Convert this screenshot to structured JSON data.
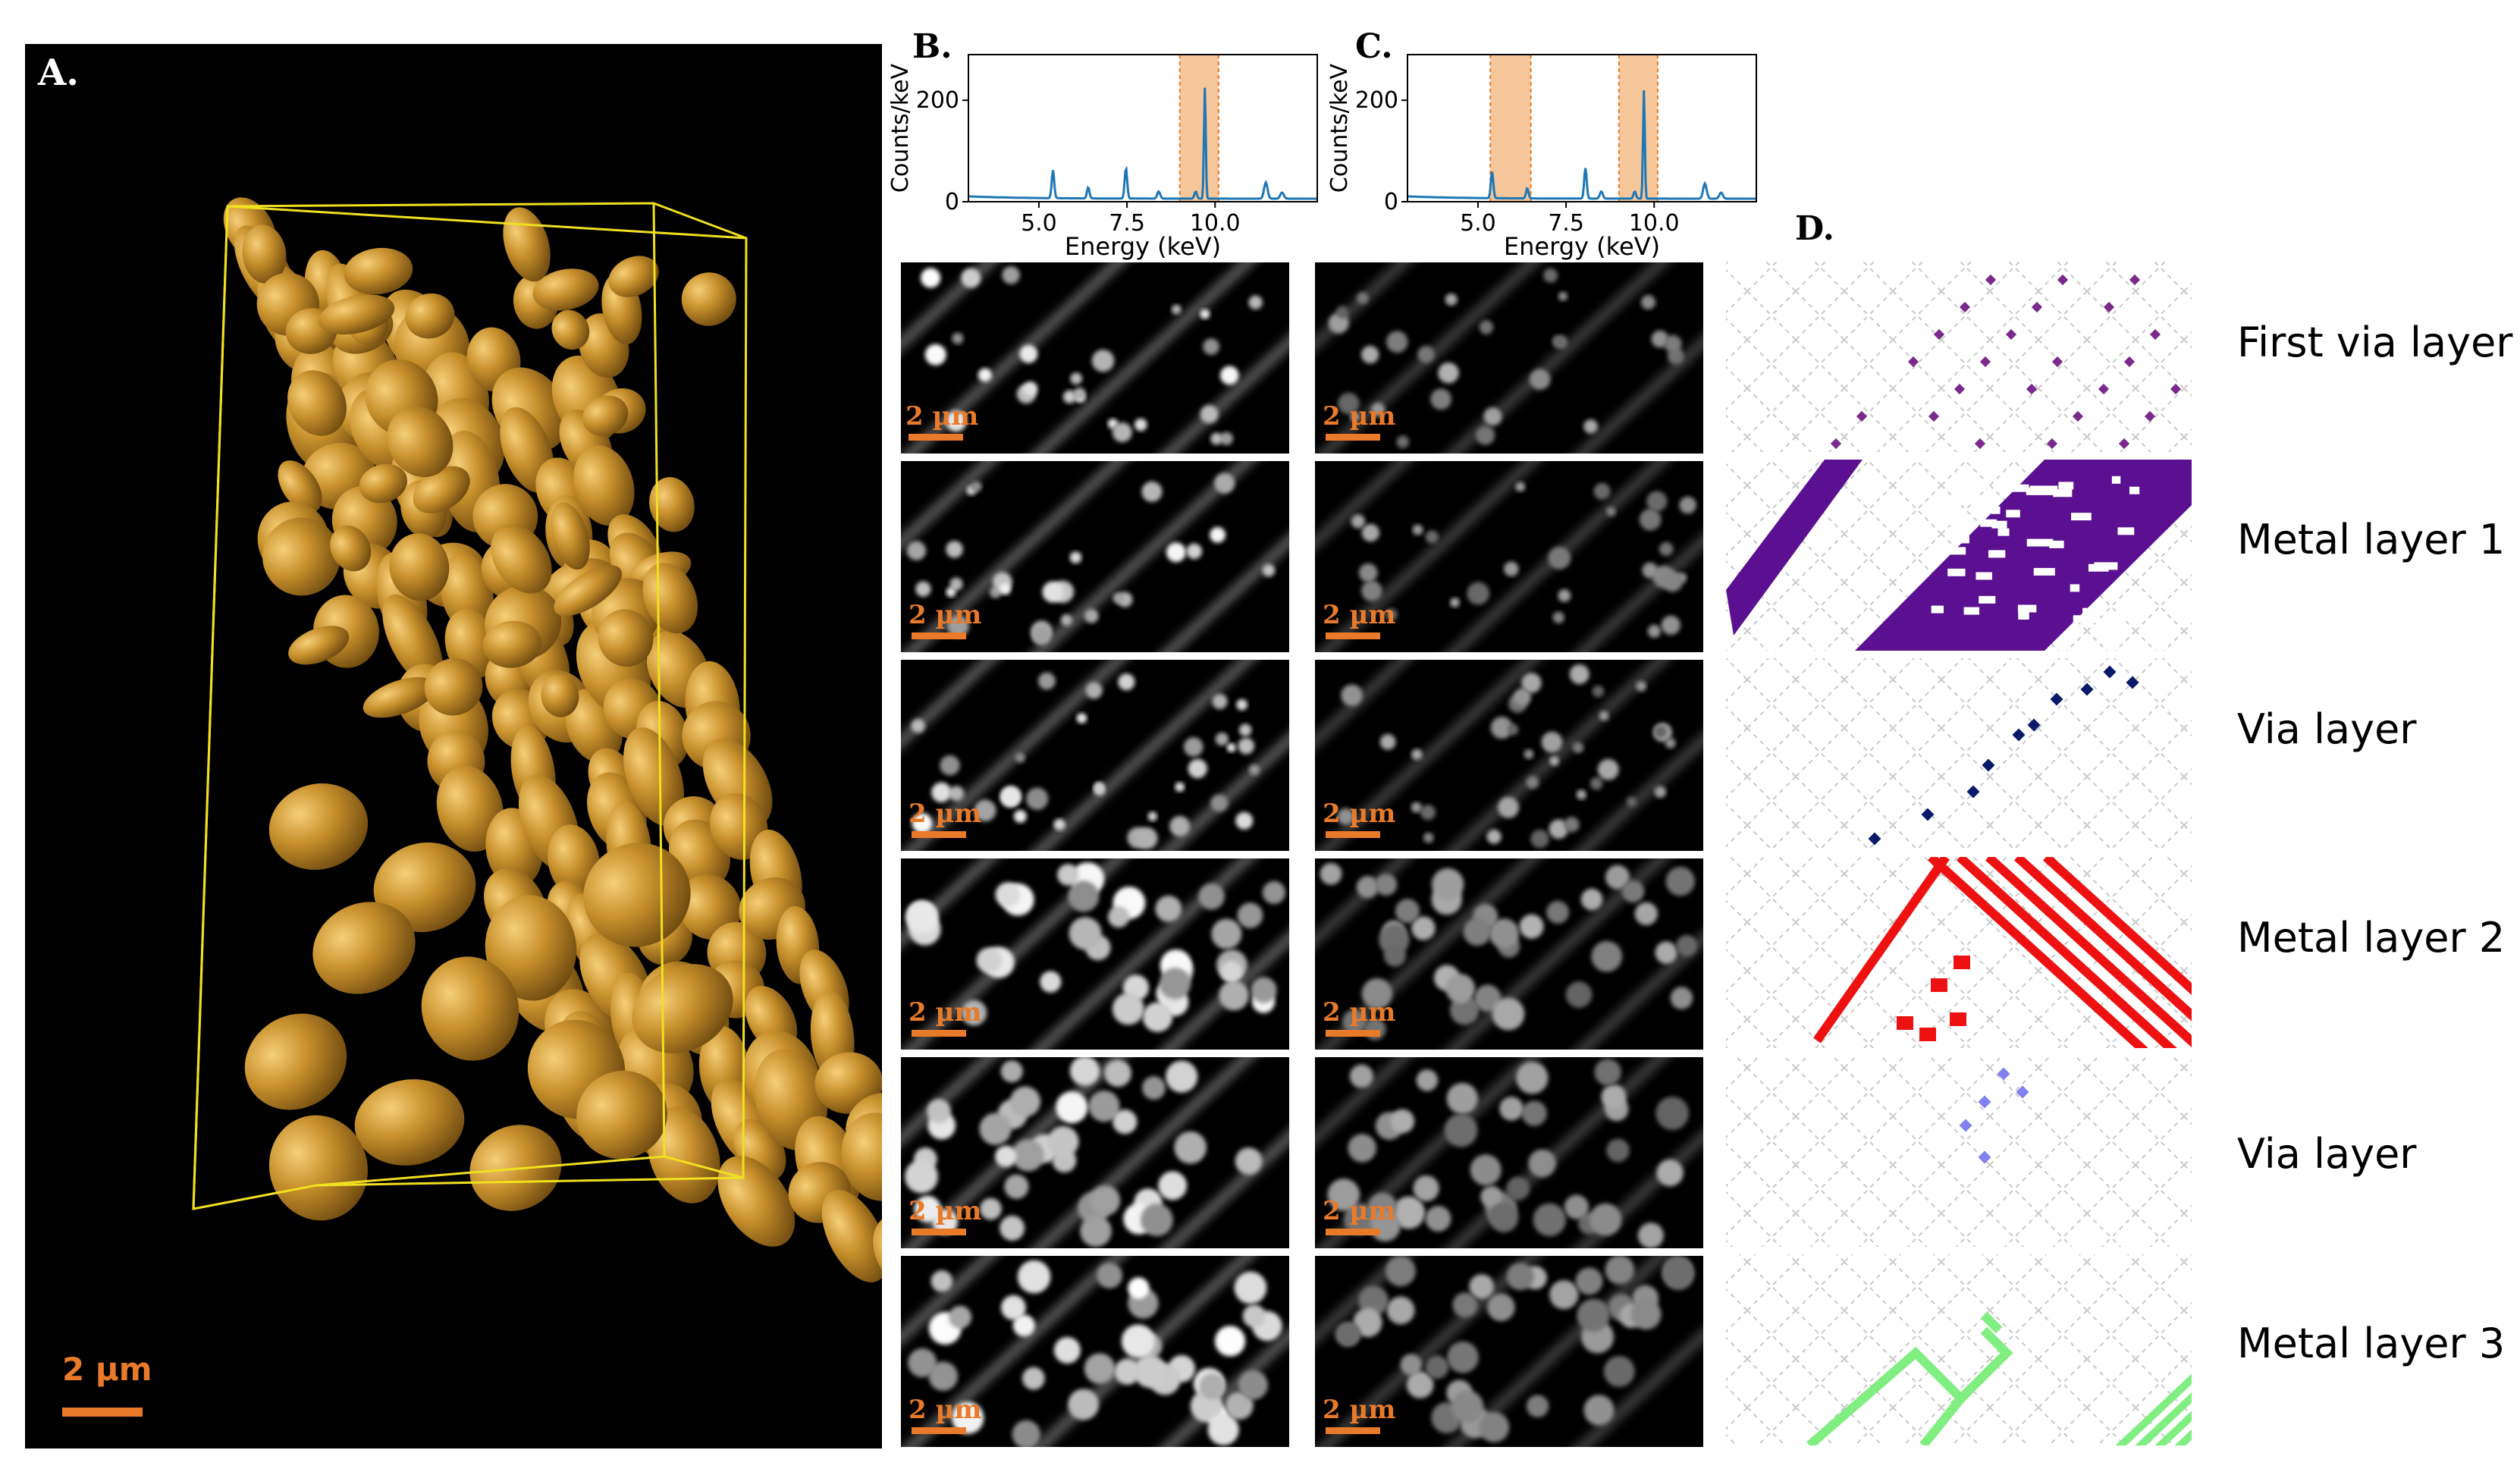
{
  "panels": {
    "a": {
      "label": "A.",
      "scalebar": "2 µm"
    },
    "b": {
      "label": "B."
    },
    "c": {
      "label": "C."
    },
    "d": {
      "label": "D."
    }
  },
  "tomo_scalebar": "2 µm",
  "layer_labels": [
    "First via layer",
    "Metal layer 1",
    "Via layer",
    "Metal layer 2",
    "Via layer",
    "Metal layer 3"
  ],
  "colors": {
    "gold": "#c8912c",
    "box": "#f0e020",
    "scalebar": "#e87a2a",
    "spectrum_line": "#1f77b4",
    "highlight": "#f5c79a",
    "first_via": "#7a2a8a",
    "metal1": "#5a1090",
    "via2": "#0a1a6a",
    "metal2": "#ee1111",
    "via3": "#8080ee",
    "metal3": "#80ee80"
  },
  "chart_data": [
    {
      "type": "line",
      "panel": "B.",
      "xlabel": "Energy (keV)",
      "ylabel": "Counts/keV",
      "xlim": [
        3,
        12.9
      ],
      "ylim": [
        0,
        290
      ],
      "xticks": [
        5.0,
        7.5,
        10.0
      ],
      "xtick_labels": [
        "5.0",
        "7.5",
        "10.0"
      ],
      "yticks": [
        0,
        200
      ],
      "ytick_labels": [
        "0",
        "200"
      ],
      "grid": false,
      "highlight_bands": [
        [
          9.0,
          10.1
        ]
      ],
      "baseline": 6,
      "peaks": [
        {
          "x": 5.4,
          "y": 55,
          "w": 0.05
        },
        {
          "x": 6.4,
          "y": 22,
          "w": 0.05
        },
        {
          "x": 7.47,
          "y": 60,
          "w": 0.05
        },
        {
          "x": 8.4,
          "y": 14,
          "w": 0.06
        },
        {
          "x": 9.71,
          "y": 220,
          "w": 0.035
        },
        {
          "x": 9.45,
          "y": 14,
          "w": 0.05
        },
        {
          "x": 11.44,
          "y": 32,
          "w": 0.07
        },
        {
          "x": 11.9,
          "y": 12,
          "w": 0.07
        }
      ]
    },
    {
      "type": "line",
      "panel": "C.",
      "xlabel": "Energy (keV)",
      "ylabel": "Counts/keV",
      "xlim": [
        3,
        12.9
      ],
      "ylim": [
        0,
        290
      ],
      "xticks": [
        5.0,
        7.5,
        10.0
      ],
      "xtick_labels": [
        "5.0",
        "7.5",
        "10.0"
      ],
      "yticks": [
        0,
        200
      ],
      "ytick_labels": [
        "0",
        "200"
      ],
      "grid": false,
      "highlight_bands": [
        [
          5.35,
          6.5
        ],
        [
          9.0,
          10.1
        ]
      ],
      "baseline": 6,
      "peaks": [
        {
          "x": 5.4,
          "y": 52,
          "w": 0.05
        },
        {
          "x": 6.4,
          "y": 20,
          "w": 0.05
        },
        {
          "x": 8.05,
          "y": 60,
          "w": 0.05
        },
        {
          "x": 8.5,
          "y": 14,
          "w": 0.06
        },
        {
          "x": 9.71,
          "y": 215,
          "w": 0.035
        },
        {
          "x": 9.45,
          "y": 14,
          "w": 0.05
        },
        {
          "x": 11.44,
          "y": 30,
          "w": 0.07
        },
        {
          "x": 11.9,
          "y": 12,
          "w": 0.07
        }
      ]
    }
  ]
}
